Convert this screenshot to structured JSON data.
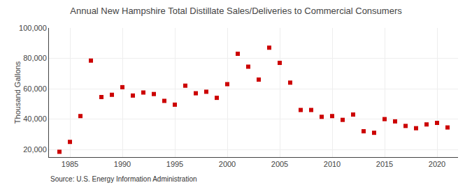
{
  "chart_data": {
    "type": "scatter",
    "title": "Annual New Hampshire Total Distillate Sales/Deliveries to Commercial Consumers",
    "ylabel": "Thousand Gallons",
    "source": "Source: U.S. Energy Information Administration",
    "x": [
      1984,
      1985,
      1986,
      1987,
      1988,
      1989,
      1990,
      1991,
      1992,
      1993,
      1994,
      1995,
      1996,
      1997,
      1998,
      1999,
      2000,
      2001,
      2002,
      2003,
      2004,
      2005,
      2006,
      2007,
      2008,
      2009,
      2010,
      2011,
      2012,
      2013,
      2014,
      2015,
      2016,
      2017,
      2018,
      2019,
      2020,
      2021
    ],
    "values": [
      18500,
      25000,
      42000,
      78500,
      54500,
      56000,
      61000,
      55500,
      57500,
      56500,
      52000,
      49500,
      62000,
      57000,
      58000,
      54000,
      63000,
      83000,
      74500,
      66000,
      87000,
      77000,
      64000,
      46000,
      46000,
      41500,
      42000,
      39500,
      43000,
      32000,
      31000,
      40000,
      38500,
      35500,
      34000,
      36500,
      37500,
      34500
    ],
    "color": "#cc0000",
    "marker": "square",
    "xlim": [
      1983,
      2022
    ],
    "xticks": [
      1985,
      1990,
      1995,
      2000,
      2005,
      2010,
      2015,
      2020
    ],
    "ylim": [
      15000,
      100000
    ],
    "yticks": [
      {
        "value": 20000,
        "label": "20,000"
      },
      {
        "value": 40000,
        "label": "40,000"
      },
      {
        "value": 60000,
        "label": "60,000"
      },
      {
        "value": 80000,
        "label": "80,000"
      },
      {
        "value": 100000,
        "label": "100,000"
      }
    ],
    "grid": true
  }
}
